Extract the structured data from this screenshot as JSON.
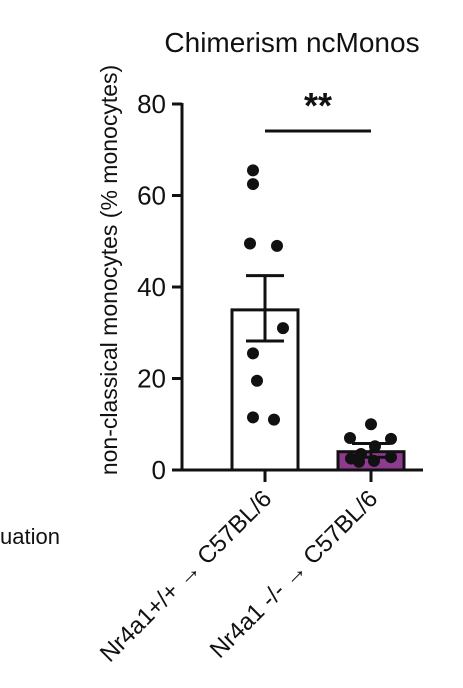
{
  "fragment_text": "uation",
  "chart_data": {
    "type": "bar",
    "title": "Chimerism ncMonos",
    "ylabel": "non-classical monocytes (% monocytes)",
    "xlabel": "",
    "ylim": [
      0,
      80
    ],
    "yticks": [
      0,
      20,
      40,
      60,
      80
    ],
    "categories": [
      "Nr4a1+/+ → C57BL/6",
      "Nr4a1 -/- → C57BL/6"
    ],
    "means": [
      35,
      4
    ],
    "sem_upper": [
      42.5,
      5.8
    ],
    "sem_lower": [
      28.2,
      2.8
    ],
    "bar_colors": [
      "#ffffff",
      "#8e3a8e"
    ],
    "points": [
      [
        65.5,
        62.5,
        49.5,
        49,
        31,
        25.5,
        19.5,
        11.5,
        11
      ],
      [
        10,
        7,
        6.8,
        5.2,
        3.5,
        2.8,
        2.5,
        2,
        1.8
      ]
    ],
    "significance": {
      "label": "**",
      "between": [
        0,
        1
      ]
    }
  }
}
